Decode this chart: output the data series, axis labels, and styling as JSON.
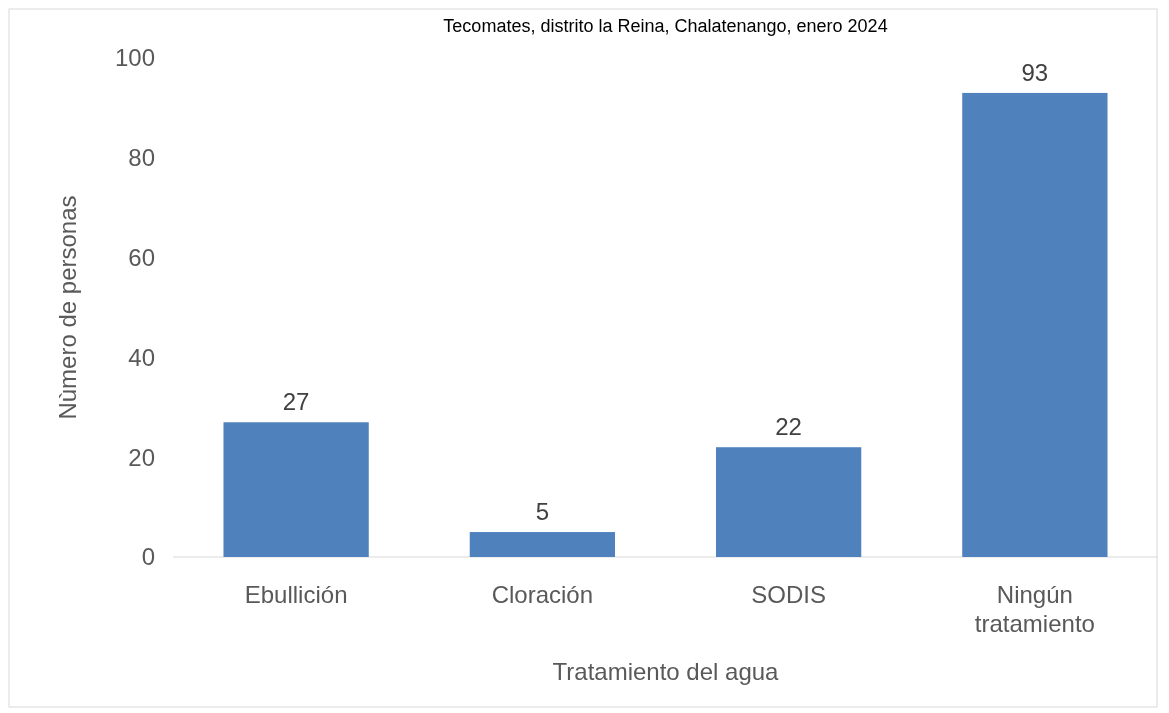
{
  "chart_data": {
    "type": "bar",
    "title": "Tecomates, distrito la Reina, Chalatenango, enero 2024",
    "xlabel": "Tratamiento del agua",
    "ylabel": "Nùmero de personas",
    "categories": [
      "Ebullición",
      "Cloración",
      "SODIS",
      "Ningún tratamiento"
    ],
    "values": [
      27,
      5,
      22,
      93
    ],
    "color": "#4f81bd",
    "ylim": [
      0,
      100
    ],
    "yticks": [
      0,
      20,
      40,
      60,
      80,
      100
    ],
    "data_labels": true
  }
}
